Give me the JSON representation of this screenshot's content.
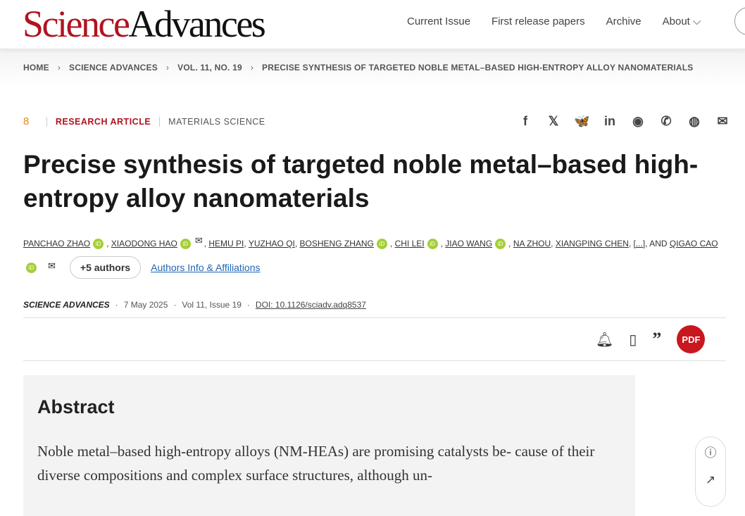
{
  "header": {
    "logo_science": "Science",
    "logo_advances": "Advances",
    "nav": [
      "Current Issue",
      "First release papers",
      "Archive",
      "About ⌵"
    ]
  },
  "breadcrumb": [
    "HOME",
    "SCIENCE ADVANCES",
    "VOL. 11, NO. 19",
    "PRECISE SYNTHESIS OF TARGETED NOBLE METAL–BASED HIGH-ENTROPY ALLOY NANOMATERIALS"
  ],
  "article": {
    "open_access_icon": "8",
    "type": "RESEARCH ARTICLE",
    "subject": "MATERIALS SCIENCE",
    "title": "Precise synthesis of targeted noble metal–based high-entropy alloy nanomaterials",
    "authors": [
      "PANCHAO ZHAO",
      "XIAODONG HAO",
      "HEMU PI",
      "YUZHAO QI",
      "BOSHENG ZHANG",
      "CHI LEI",
      "JIAO WANG",
      "NA ZHOU",
      "XIANGPING CHEN",
      "[...]"
    ],
    "and_label": ", AND",
    "last_author": "QIGAO CAO",
    "more_authors": "+5 authors",
    "affiliations": "Authors Info & Affiliations",
    "journal": "SCIENCE ADVANCES",
    "date": "7 May 2025",
    "issue": "Vol 11, Issue 19",
    "doi": "DOI: 10.1126/sciadv.adq8537"
  },
  "share_icons": [
    "f",
    "𝕏",
    "🦋",
    "in",
    "◉",
    "✆",
    "◍",
    "✉"
  ],
  "abstract": {
    "heading": "Abstract",
    "text": "Noble metal–based high-entropy alloys (NM-HEAs) are promising catalysts be- cause of their diverse compositions and complex surface structures, although un-"
  }
}
